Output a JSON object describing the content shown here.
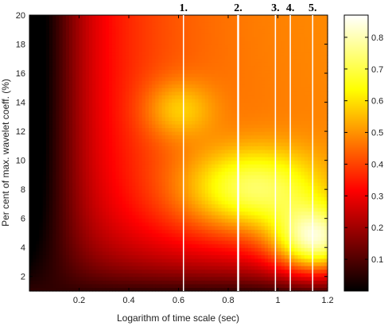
{
  "chart_data": {
    "type": "heatmap",
    "title": "",
    "xlabel": "Logarithm of time scale (sec)",
    "ylabel": "Per cent of max. wavelet coeff. (%)",
    "xlim": [
      0.0,
      1.2
    ],
    "ylim": [
      1,
      20
    ],
    "x_ticks": [
      "0.2",
      "0.4",
      "0.6",
      "0.8",
      "1",
      "1.2"
    ],
    "x_tick_values": [
      0.2,
      0.4,
      0.6,
      0.8,
      1.0,
      1.2
    ],
    "y_ticks": [
      "2",
      "4",
      "6",
      "8",
      "10",
      "12",
      "14",
      "16",
      "18",
      "20"
    ],
    "y_tick_values": [
      2,
      4,
      6,
      8,
      10,
      12,
      14,
      16,
      18,
      20
    ],
    "colormap": "hot",
    "colorbar": {
      "range": [
        0,
        0.87
      ],
      "ticks": [
        "0.1",
        "0.2",
        "0.3",
        "0.4",
        "0.5",
        "0.6",
        "0.7",
        "0.8"
      ],
      "tick_values": [
        0.1,
        0.2,
        0.3,
        0.4,
        0.5,
        0.6,
        0.7,
        0.8
      ]
    },
    "vertical_lines": [
      {
        "label": "1.",
        "x": 0.62
      },
      {
        "label": "2.",
        "x": 0.84
      },
      {
        "label": "3.",
        "x": 0.99
      },
      {
        "label": "4.",
        "x": 1.05
      },
      {
        "label": "5.",
        "x": 1.14
      }
    ],
    "hotspots": [
      {
        "x": 1.15,
        "y": 4.5,
        "value": 0.85
      },
      {
        "x": 0.9,
        "y": 8.0,
        "value": 0.7
      },
      {
        "x": 0.6,
        "y": 13.5,
        "value": 0.55
      }
    ]
  }
}
